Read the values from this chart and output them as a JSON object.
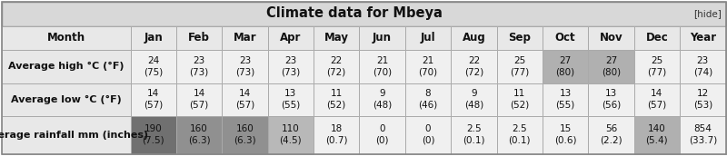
{
  "title": "Climate data for Mbeya",
  "hide_text": "[hide]",
  "col_headers": [
    "Month",
    "Jan",
    "Feb",
    "Mar",
    "Apr",
    "May",
    "Jun",
    "Jul",
    "Aug",
    "Sep",
    "Oct",
    "Nov",
    "Dec",
    "Year"
  ],
  "rows": [
    {
      "label": "Average high °C (°F)",
      "values": [
        "24\n(75)",
        "23\n(73)",
        "23\n(73)",
        "23\n(73)",
        "22\n(72)",
        "21\n(70)",
        "21\n(70)",
        "22\n(72)",
        "25\n(77)",
        "27\n(80)",
        "27\n(80)",
        "25\n(77)",
        "23\n(74)"
      ],
      "bg_colors": [
        "#f0f0f0",
        "#f0f0f0",
        "#f0f0f0",
        "#f0f0f0",
        "#f0f0f0",
        "#f0f0f0",
        "#f0f0f0",
        "#f0f0f0",
        "#f0f0f0",
        "#b0b0b0",
        "#b0b0b0",
        "#f0f0f0",
        "#f0f0f0"
      ]
    },
    {
      "label": "Average low °C (°F)",
      "values": [
        "14\n(57)",
        "14\n(57)",
        "14\n(57)",
        "13\n(55)",
        "11\n(52)",
        "9\n(48)",
        "8\n(46)",
        "9\n(48)",
        "11\n(52)",
        "13\n(55)",
        "13\n(56)",
        "14\n(57)",
        "12\n(53)"
      ],
      "bg_colors": [
        "#f0f0f0",
        "#f0f0f0",
        "#f0f0f0",
        "#f0f0f0",
        "#f0f0f0",
        "#f0f0f0",
        "#f0f0f0",
        "#f0f0f0",
        "#f0f0f0",
        "#f0f0f0",
        "#f0f0f0",
        "#f0f0f0",
        "#f0f0f0"
      ]
    },
    {
      "label": "Average rainfall mm (inches)",
      "values": [
        "190\n(7.5)",
        "160\n(6.3)",
        "160\n(6.3)",
        "110\n(4.5)",
        "18\n(0.7)",
        "0\n(0)",
        "0\n(0)",
        "2.5\n(0.1)",
        "2.5\n(0.1)",
        "15\n(0.6)",
        "56\n(2.2)",
        "140\n(5.4)",
        "854\n(33.7)"
      ],
      "bg_colors": [
        "#707070",
        "#909090",
        "#909090",
        "#b8b8b8",
        "#f0f0f0",
        "#f0f0f0",
        "#f0f0f0",
        "#f0f0f0",
        "#f0f0f0",
        "#f0f0f0",
        "#f0f0f0",
        "#b0b0b0",
        "#f0f0f0"
      ]
    }
  ],
  "title_bg": "#d8d8d8",
  "header_bg": "#e8e8e8",
  "label_bg": "#e8e8e8",
  "border_color": "#aaaaaa",
  "title_fontsize": 10.5,
  "header_fontsize": 8.5,
  "cell_fontsize": 7.5,
  "label_fontsize": 8.0
}
